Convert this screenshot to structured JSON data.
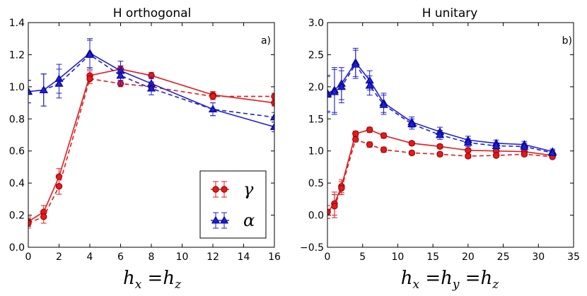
{
  "colors": {
    "gamma": "#e31a1c",
    "gamma_edge": "#8b0000",
    "alpha": "#1f1fd1",
    "alpha_edge": "#00008b"
  },
  "legend": {
    "gamma": "γ",
    "alpha": "α"
  },
  "chart_data": [
    {
      "type": "line",
      "title": "H orthogonal",
      "panel_label": "a)",
      "xlabel": {
        "a": "h",
        "a_sub": "x",
        "eq": " =",
        "b": "h",
        "b_sub": "z"
      },
      "xlim": [
        0,
        16
      ],
      "ylim": [
        0.0,
        1.4
      ],
      "xticks": [
        0,
        2,
        4,
        6,
        8,
        10,
        12,
        14,
        16
      ],
      "yticks": [
        0.0,
        0.2,
        0.4,
        0.6,
        0.8,
        1.0,
        1.2,
        1.4
      ],
      "xtick_labels": [
        "0",
        "2",
        "4",
        "6",
        "8",
        "10",
        "12",
        "14",
        "16"
      ],
      "ytick_labels": [
        "0.0",
        "0.2",
        "0.4",
        "0.6",
        "0.8",
        "1.0",
        "1.2",
        "1.4"
      ],
      "series": [
        {
          "name": "gamma_solid",
          "symbol": "gamma",
          "style": "solid",
          "x": [
            0,
            1,
            2,
            4,
            6,
            8,
            12,
            16
          ],
          "y": [
            0.16,
            0.22,
            0.44,
            1.07,
            1.11,
            1.07,
            0.95,
            0.9
          ],
          "err": [
            0.03,
            0.04,
            0.05,
            0.03,
            0.02,
            0.02,
            0.02,
            0.02
          ]
        },
        {
          "name": "gamma_dashed",
          "symbol": "gamma",
          "style": "dashed",
          "x": [
            0,
            1,
            2,
            4,
            6,
            8,
            12,
            16
          ],
          "y": [
            0.15,
            0.19,
            0.38,
            1.05,
            1.02,
            1.0,
            0.94,
            0.94
          ],
          "err": [
            0.03,
            0.04,
            0.05,
            0.03,
            0.02,
            0.02,
            0.02,
            0.02
          ]
        },
        {
          "name": "alpha_solid",
          "symbol": "alpha",
          "style": "solid",
          "x": [
            0,
            1,
            2,
            4,
            6,
            8,
            12,
            16
          ],
          "y": [
            0.97,
            0.98,
            1.05,
            1.21,
            1.1,
            1.02,
            0.86,
            0.75
          ],
          "err": [
            0.07,
            0.1,
            0.09,
            0.09,
            0.06,
            0.04,
            0.04,
            0.03
          ]
        },
        {
          "name": "alpha_dashed",
          "symbol": "alpha",
          "style": "dashed",
          "x": [
            0,
            1,
            2,
            4,
            6,
            8,
            12,
            16
          ],
          "y": [
            0.97,
            0.98,
            1.02,
            1.2,
            1.07,
            0.99,
            0.86,
            0.81
          ],
          "err": [
            0.07,
            0.1,
            0.09,
            0.09,
            0.06,
            0.04,
            0.04,
            0.03
          ]
        }
      ]
    },
    {
      "type": "line",
      "title": "H unitary",
      "panel_label": "b)",
      "xlabel": {
        "a": "h",
        "a_sub": "x",
        "eq": " =",
        "b": "h",
        "b_sub": "y",
        "eq2": " =",
        "c": "h",
        "c_sub": "z"
      },
      "xlim": [
        0,
        35
      ],
      "ylim": [
        -0.5,
        3.0
      ],
      "xticks": [
        0,
        5,
        10,
        15,
        20,
        25,
        30,
        35
      ],
      "yticks": [
        -0.5,
        0.0,
        0.5,
        1.0,
        1.5,
        2.0,
        2.5,
        3.0
      ],
      "xtick_labels": [
        "0",
        "5",
        "10",
        "15",
        "20",
        "25",
        "30",
        "35"
      ],
      "ytick_labels": [
        "−0.5",
        "0.0",
        "0.5",
        "1.0",
        "1.5",
        "2.0",
        "2.5",
        "3.0"
      ],
      "series": [
        {
          "name": "gamma_solid",
          "symbol": "gamma",
          "style": "solid",
          "x": [
            0,
            1,
            2,
            4,
            6,
            8,
            12,
            16,
            20,
            24,
            28,
            32
          ],
          "y": [
            0.05,
            0.18,
            0.45,
            1.27,
            1.33,
            1.24,
            1.12,
            1.07,
            1.01,
            1.0,
            0.99,
            0.93
          ],
          "err": [
            0.1,
            0.18,
            0.1,
            0.04,
            0.04,
            0.04,
            0.03,
            0.03,
            0.03,
            0.03,
            0.03,
            0.03
          ]
        },
        {
          "name": "gamma_dashed",
          "symbol": "gamma",
          "style": "dashed",
          "x": [
            0,
            1,
            2,
            4,
            6,
            8,
            12,
            16,
            20,
            24,
            28,
            32
          ],
          "y": [
            0.05,
            0.14,
            0.42,
            1.18,
            1.1,
            1.02,
            0.97,
            0.95,
            0.92,
            0.93,
            0.95,
            0.91
          ],
          "err": [
            0.1,
            0.18,
            0.1,
            0.04,
            0.04,
            0.04,
            0.03,
            0.03,
            0.03,
            0.03,
            0.03,
            0.03
          ]
        },
        {
          "name": "alpha_solid",
          "symbol": "alpha",
          "style": "solid",
          "x": [
            0,
            1,
            2,
            4,
            6,
            8,
            12,
            16,
            20,
            24,
            28,
            32
          ],
          "y": [
            1.9,
            1.95,
            2.05,
            2.38,
            2.1,
            1.75,
            1.45,
            1.3,
            1.17,
            1.12,
            1.1,
            0.99
          ],
          "err": [
            0.28,
            0.35,
            0.25,
            0.22,
            0.15,
            0.15,
            0.08,
            0.07,
            0.06,
            0.05,
            0.05,
            0.04
          ]
        },
        {
          "name": "alpha_dashed",
          "symbol": "alpha",
          "style": "dashed",
          "x": [
            0,
            1,
            2,
            4,
            6,
            8,
            12,
            16,
            20,
            24,
            28,
            32
          ],
          "y": [
            1.88,
            1.92,
            2.0,
            2.35,
            2.02,
            1.72,
            1.42,
            1.25,
            1.13,
            1.08,
            1.07,
            0.97
          ],
          "err": [
            0.28,
            0.35,
            0.25,
            0.22,
            0.15,
            0.15,
            0.08,
            0.07,
            0.06,
            0.05,
            0.05,
            0.04
          ]
        }
      ]
    }
  ]
}
